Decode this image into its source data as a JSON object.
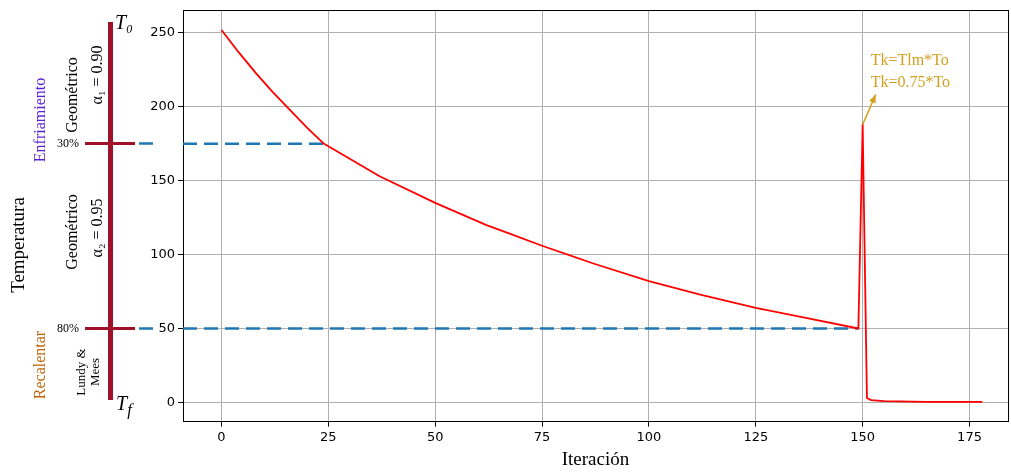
{
  "chart_data": {
    "type": "line",
    "xlabel": "Iteración",
    "xlim": [
      -9,
      184
    ],
    "xticks": [
      0,
      25,
      50,
      75,
      100,
      125,
      150,
      175
    ],
    "ylim": [
      -13,
      265
    ],
    "yticks": [
      0,
      50,
      100,
      150,
      200,
      250
    ],
    "grid": true,
    "legend": false,
    "marker": "none",
    "series": [
      {
        "color": "#ff0000",
        "x": [
          0,
          4,
          8,
          12,
          16,
          20,
          24,
          37,
          50,
          62,
          75,
          87,
          100,
          112,
          125,
          137,
          149,
          150,
          151,
          152,
          155,
          165,
          178
        ],
        "values": [
          252,
          237,
          223,
          210,
          198,
          186,
          175,
          153,
          135,
          120,
          106,
          94,
          82,
          73,
          64,
          57,
          50,
          188,
          3,
          1.5,
          0.8,
          0.4,
          0.3
        ]
      },
      {
        "color": "#1f77b4",
        "line_style": "dashed",
        "x": [
          -9,
          24
        ],
        "values": [
          175,
          175
        ]
      },
      {
        "color": "#1f77b4",
        "line_style": "dashed",
        "x": [
          -9,
          149
        ],
        "values": [
          50,
          50
        ]
      }
    ],
    "annotations": [
      {
        "text": "Tk=Tlm*To\nTk=0.75*To",
        "x": 150,
        "y": 188
      },
      "T₀",
      "T$_{f}$",
      "Enfriamiento",
      "Recalentar",
      "30%",
      "80%",
      "Geométrico",
      "α₁ = 0.90",
      "Geométrico",
      "α₂ = 0.95",
      "Lundy & Mees",
      "Temperatura"
    ]
  }
}
